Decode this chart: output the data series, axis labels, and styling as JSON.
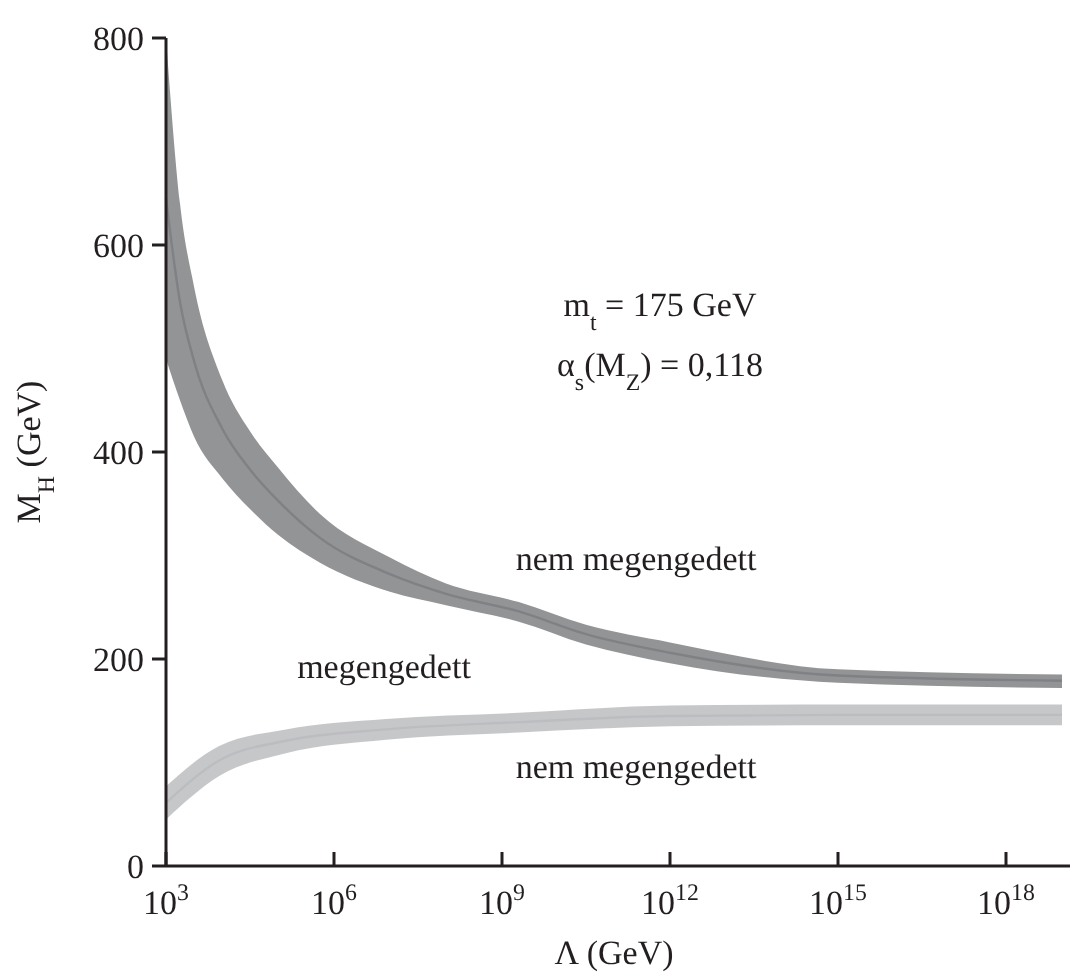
{
  "chart_data": {
    "type": "line",
    "xlabel": "Λ (GeV)",
    "ylabel": "M$_{H}$ (GeV)",
    "log": "x",
    "xlim": [
      1000,
      1e+19
    ],
    "xticks": [
      {
        "value": 1000,
        "label": "10$^{3}$"
      },
      {
        "value": 1000000,
        "label": "10$^{6}$"
      },
      {
        "value": 1000000000,
        "label": "10$^{9}$"
      },
      {
        "value": 1000000000000,
        "label": "10$^{12}$"
      },
      {
        "value": 1000000000000000,
        "label": "10$^{15}$"
      },
      {
        "value": 1000000000000000000,
        "label": "10$^{18}$"
      }
    ],
    "ylim": [
      0,
      800
    ],
    "yticks": [
      0,
      200,
      400,
      600,
      800
    ],
    "grid": false,
    "marker": "none",
    "series": [
      {
        "color": "#808184",
        "x": [
          1000,
          1778,
          3162,
          10000,
          31623,
          100000,
          562341,
          10000000,
          100000000,
          1995262315,
          31622776602,
          1000000000000,
          1000000000000000,
          1e+19
        ],
        "values": [
          645,
          545,
          488,
          423,
          383,
          353,
          317,
          282,
          263,
          246,
          224,
          206,
          184,
          179
        ],
        "upper": [
          800,
          640,
          560,
          470,
          420,
          385,
          340,
          298,
          273,
          255,
          233,
          216,
          190,
          185
        ],
        "lower": [
          490,
          450,
          415,
          375,
          345,
          320,
          293,
          265,
          252,
          236,
          214,
          196,
          177,
          172
        ]
      },
      {
        "color": "#bcbdc0",
        "x": [
          1000,
          8913,
          138038,
          8511380,
          1995262315,
          1000000000000,
          1000000000000000,
          1e+19
        ],
        "values": [
          61,
          102,
          121,
          132,
          139,
          145,
          146,
          146
        ],
        "upper": [
          77,
          116,
          132,
          142,
          148,
          155,
          156,
          156
        ],
        "lower": [
          45,
          87,
          109,
          122,
          129,
          135,
          136,
          136
        ]
      }
    ],
    "annotations": [
      "m$_{t}$ = 175 GeV",
      "α$_{s}$(M$_{Z}$) = 0,118",
      "nem megengedett",
      "megengedett",
      "nem megengedett"
    ]
  }
}
